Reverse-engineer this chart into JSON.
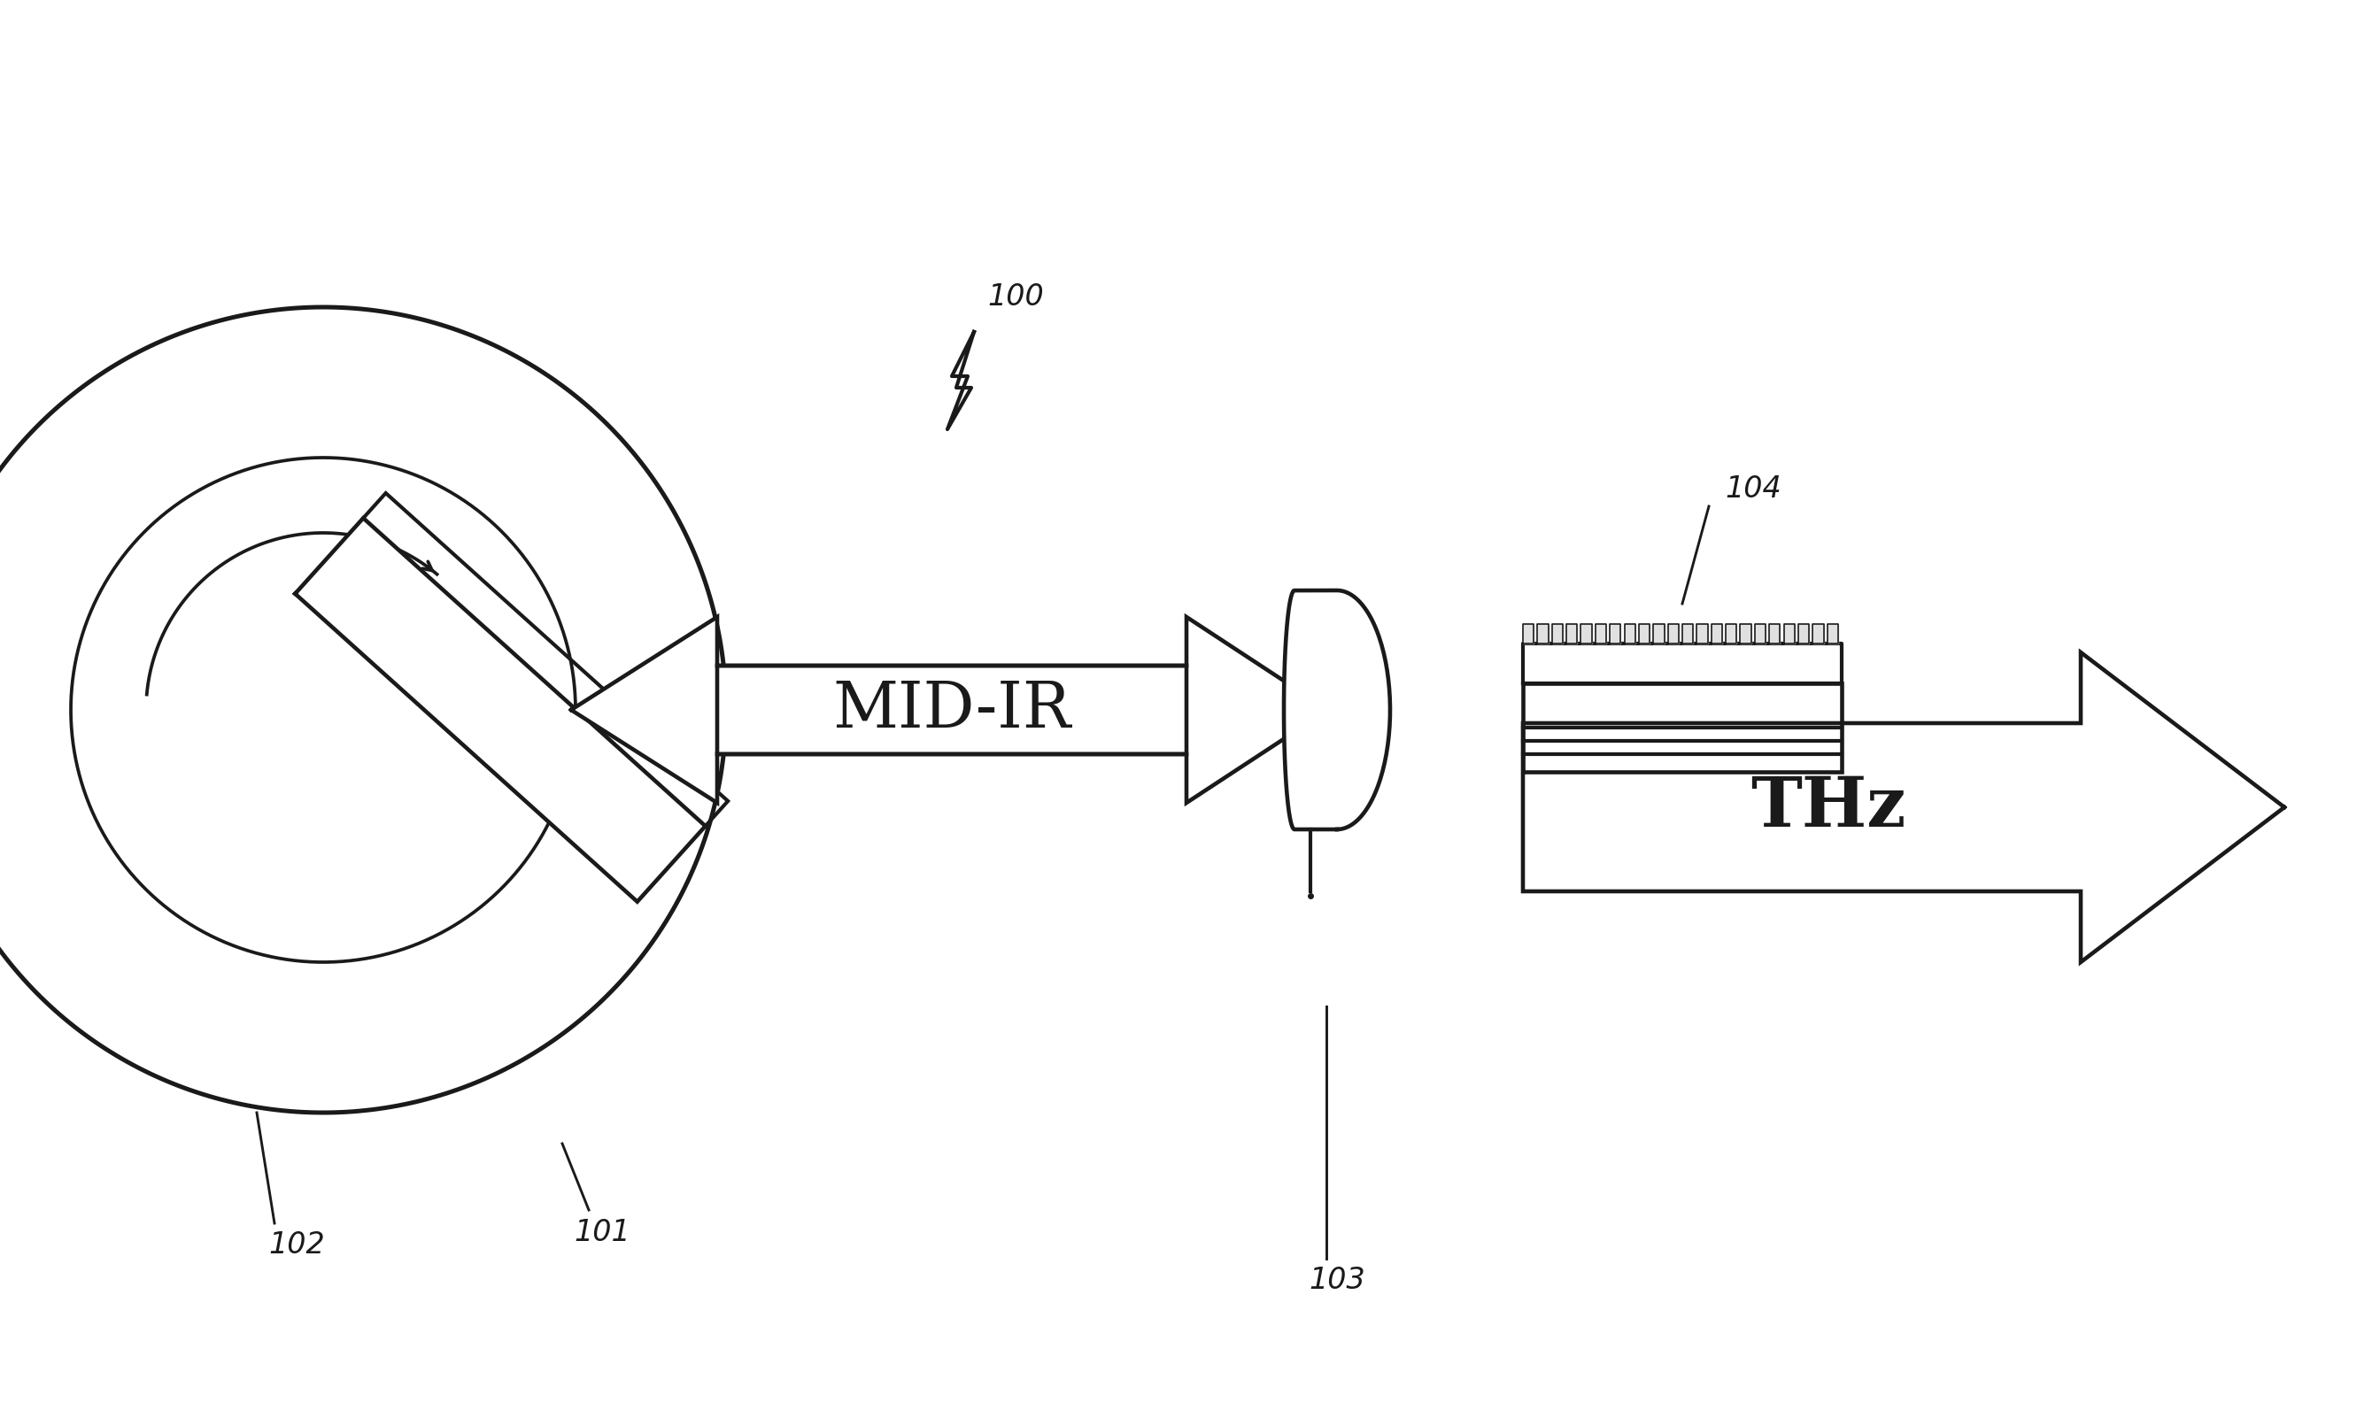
{
  "bg_color": "#ffffff",
  "line_color": "#1a1a1a",
  "lw": 3.0,
  "fig_width": 26.62,
  "fig_height": 16.02,
  "label_100": "100",
  "label_101": "101",
  "label_102": "102",
  "label_103": "103",
  "label_104": "104",
  "mid_ir_label": "MID-IR",
  "thz_label": "THz",
  "font_size_label": 24,
  "font_size_mid_ir": 52,
  "font_size_thz": 56
}
